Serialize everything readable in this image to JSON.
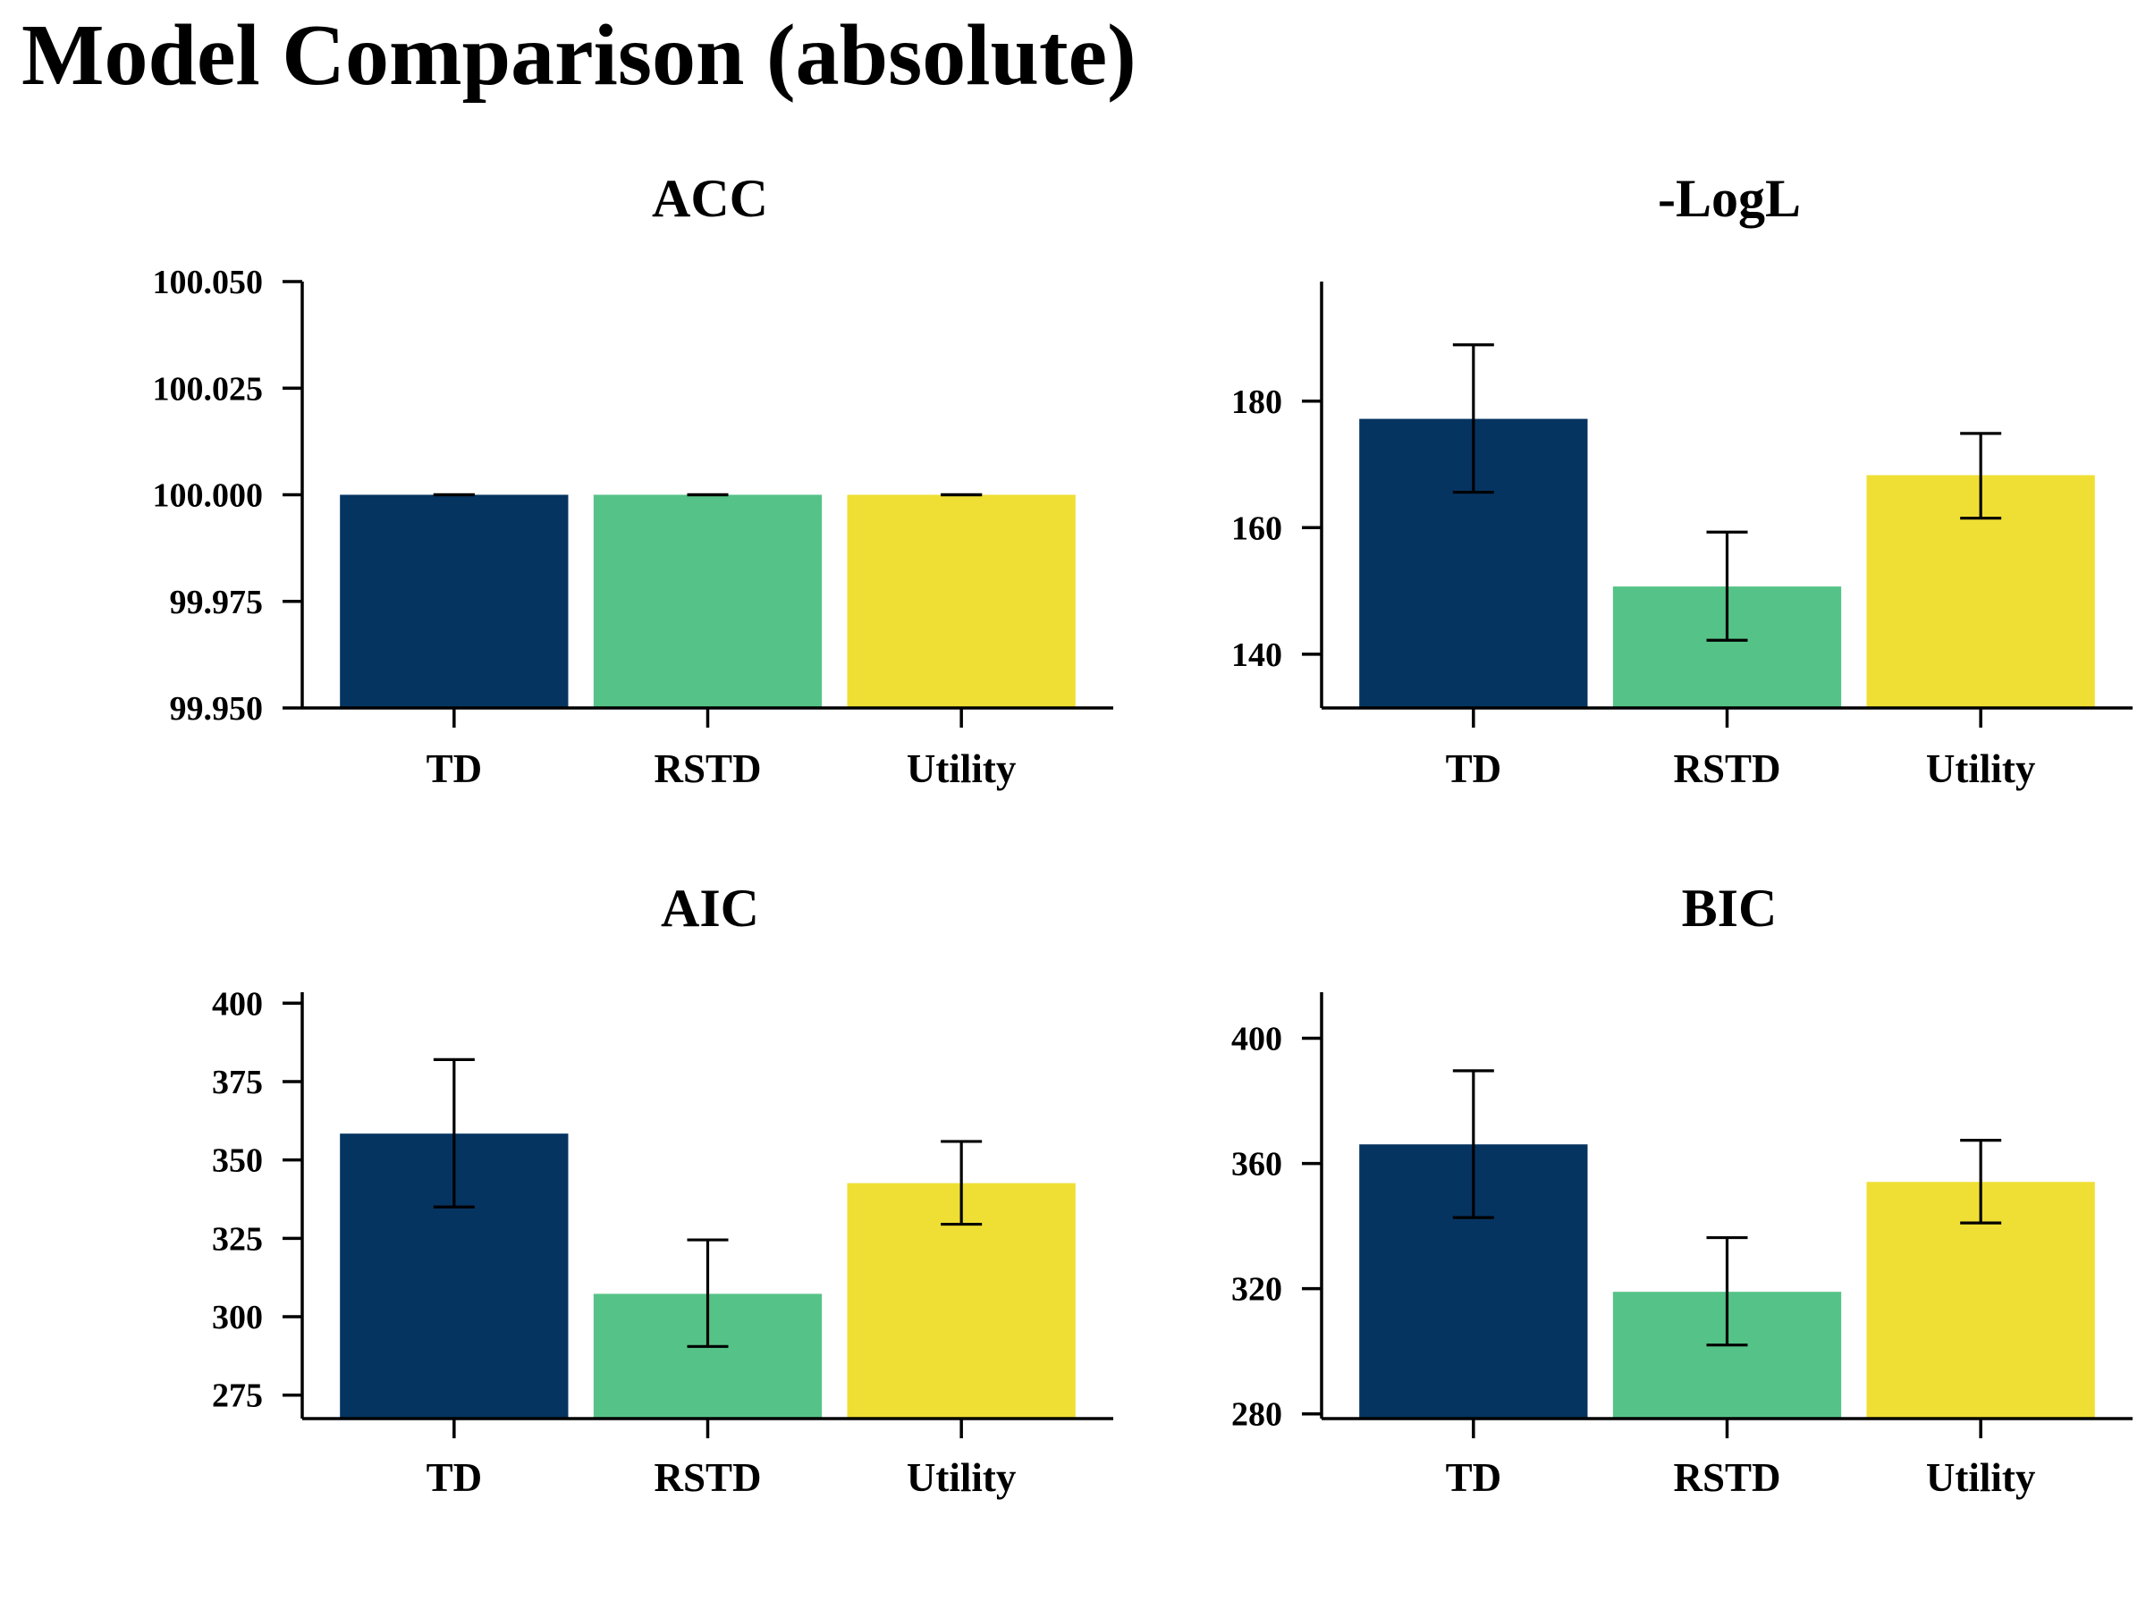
{
  "title": "Model Comparison (absolute)",
  "colors": {
    "TD": "#063461",
    "RSTD": "#55c387",
    "Utility": "#efdf34"
  },
  "chart_data": [
    {
      "type": "bar",
      "title": "ACC",
      "categories": [
        "TD",
        "RSTD",
        "Utility"
      ],
      "values": [
        100.0,
        100.0,
        100.0
      ],
      "error": [
        [
          100.0,
          100.0
        ],
        [
          100.0,
          100.0
        ],
        [
          100.0,
          100.0
        ]
      ],
      "ylim": [
        99.95,
        100.05
      ],
      "yticks": [
        99.95,
        99.975,
        100.0,
        100.025,
        100.05
      ],
      "ytick_labels": [
        "99.950",
        "99.975",
        "100.000",
        "100.025",
        "100.050"
      ],
      "xlabel": "",
      "ylabel": ""
    },
    {
      "type": "bar",
      "title": "-LogL",
      "categories": [
        "TD",
        "RSTD",
        "Utility"
      ],
      "values": [
        177.2,
        150.7,
        168.3
      ],
      "error": [
        [
          165.6,
          188.9
        ],
        [
          142.2,
          159.3
        ],
        [
          161.5,
          174.9
        ]
      ],
      "ylim": [
        131.5,
        198.9
      ],
      "yticks": [
        140,
        160,
        180
      ],
      "ytick_labels": [
        "140",
        "160",
        "180"
      ],
      "xlabel": "",
      "ylabel": ""
    },
    {
      "type": "bar",
      "title": "AIC",
      "categories": [
        "TD",
        "RSTD",
        "Utility"
      ],
      "values": [
        358.4,
        307.3,
        342.6
      ],
      "error": [
        [
          335.0,
          382.0
        ],
        [
          290.5,
          324.5
        ],
        [
          329.5,
          355.9
        ]
      ],
      "ylim": [
        267.5,
        403.5
      ],
      "yticks": [
        275,
        300,
        325,
        350,
        375,
        400
      ],
      "ytick_labels": [
        "275",
        "300",
        "325",
        "350",
        "375",
        "400"
      ],
      "xlabel": "",
      "ylabel": ""
    },
    {
      "type": "bar",
      "title": "BIC",
      "categories": [
        "TD",
        "RSTD",
        "Utility"
      ],
      "values": [
        366.1,
        319.0,
        354.1
      ],
      "error": [
        [
          342.7,
          389.6
        ],
        [
          302.0,
          336.3
        ],
        [
          341.0,
          367.4
        ]
      ],
      "ylim": [
        278.5,
        414.7
      ],
      "yticks": [
        280,
        320,
        360,
        400
      ],
      "ytick_labels": [
        "280",
        "320",
        "360",
        "400"
      ],
      "xlabel": "",
      "ylabel": ""
    }
  ]
}
